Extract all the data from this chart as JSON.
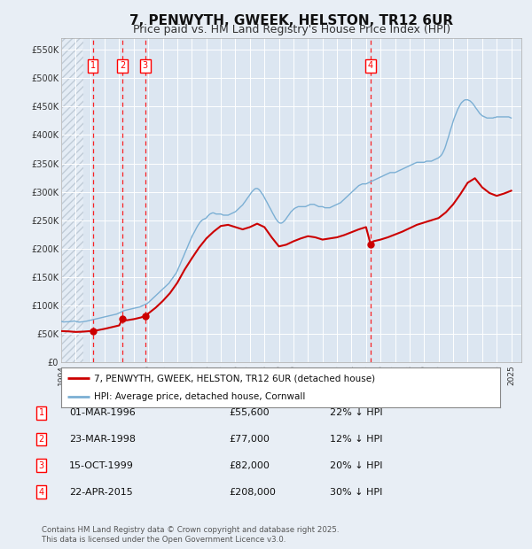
{
  "title": "7, PENWYTH, GWEEK, HELSTON, TR12 6UR",
  "subtitle": "Price paid vs. HM Land Registry's House Price Index (HPI)",
  "title_fontsize": 11,
  "subtitle_fontsize": 9,
  "background_color": "#e8eef5",
  "plot_bg_color": "#dce6f1",
  "grid_color": "#ffffff",
  "red_line_color": "#cc0000",
  "blue_line_color": "#7bafd4",
  "legend_label_red": "7, PENWYTH, GWEEK, HELSTON, TR12 6UR (detached house)",
  "legend_label_blue": "HPI: Average price, detached house, Cornwall",
  "footer": "Contains HM Land Registry data © Crown copyright and database right 2025.\nThis data is licensed under the Open Government Licence v3.0.",
  "transactions": [
    {
      "num": 1,
      "date": "01-MAR-1996",
      "price": 55600,
      "pct": "22%",
      "year_x": 1996.17
    },
    {
      "num": 2,
      "date": "23-MAR-1998",
      "price": 77000,
      "pct": "12%",
      "year_x": 1998.22
    },
    {
      "num": 3,
      "date": "15-OCT-1999",
      "price": 82000,
      "pct": "20%",
      "year_x": 1999.79
    },
    {
      "num": 4,
      "date": "22-APR-2015",
      "price": 208000,
      "pct": "30%",
      "year_x": 2015.31
    }
  ],
  "ylim": [
    0,
    570000
  ],
  "xlim_start": 1994.0,
  "xlim_end": 2025.7,
  "yticks": [
    0,
    50000,
    100000,
    150000,
    200000,
    250000,
    300000,
    350000,
    400000,
    450000,
    500000,
    550000
  ],
  "ytick_labels": [
    "£0",
    "£50K",
    "£100K",
    "£150K",
    "£200K",
    "£250K",
    "£300K",
    "£350K",
    "£400K",
    "£450K",
    "£500K",
    "£550K"
  ],
  "xticks": [
    1994,
    1995,
    1996,
    1997,
    1998,
    1999,
    2000,
    2001,
    2002,
    2003,
    2004,
    2005,
    2006,
    2007,
    2008,
    2009,
    2010,
    2011,
    2012,
    2013,
    2014,
    2015,
    2016,
    2017,
    2018,
    2019,
    2020,
    2021,
    2022,
    2023,
    2024,
    2025
  ],
  "hpi_data": [
    [
      1994.0,
      72000
    ],
    [
      1994.08,
      71500
    ],
    [
      1994.17,
      71000
    ],
    [
      1994.25,
      71200
    ],
    [
      1994.33,
      71400
    ],
    [
      1994.42,
      71300
    ],
    [
      1994.5,
      71500
    ],
    [
      1994.58,
      71800
    ],
    [
      1994.67,
      72000
    ],
    [
      1994.75,
      72200
    ],
    [
      1994.83,
      72500
    ],
    [
      1994.92,
      72800
    ],
    [
      1995.0,
      72000
    ],
    [
      1995.08,
      71500
    ],
    [
      1995.17,
      71000
    ],
    [
      1995.25,
      70800
    ],
    [
      1995.33,
      71000
    ],
    [
      1995.42,
      71200
    ],
    [
      1995.5,
      71500
    ],
    [
      1995.58,
      71800
    ],
    [
      1995.67,
      72000
    ],
    [
      1995.75,
      72500
    ],
    [
      1995.83,
      73000
    ],
    [
      1995.92,
      73500
    ],
    [
      1996.0,
      74000
    ],
    [
      1996.08,
      74500
    ],
    [
      1996.17,
      75000
    ],
    [
      1996.25,
      75500
    ],
    [
      1996.33,
      76000
    ],
    [
      1996.42,
      76500
    ],
    [
      1996.5,
      77000
    ],
    [
      1996.58,
      77500
    ],
    [
      1996.67,
      78000
    ],
    [
      1996.75,
      78500
    ],
    [
      1996.83,
      79000
    ],
    [
      1996.92,
      79500
    ],
    [
      1997.0,
      80000
    ],
    [
      1997.08,
      80500
    ],
    [
      1997.17,
      81000
    ],
    [
      1997.25,
      81500
    ],
    [
      1997.33,
      82000
    ],
    [
      1997.42,
      82500
    ],
    [
      1997.5,
      83000
    ],
    [
      1997.58,
      83500
    ],
    [
      1997.67,
      84000
    ],
    [
      1997.75,
      84500
    ],
    [
      1997.83,
      85000
    ],
    [
      1997.92,
      86000
    ],
    [
      1998.0,
      87000
    ],
    [
      1998.08,
      88000
    ],
    [
      1998.17,
      89000
    ],
    [
      1998.25,
      90000
    ],
    [
      1998.33,
      91000
    ],
    [
      1998.42,
      91500
    ],
    [
      1998.5,
      92000
    ],
    [
      1998.58,
      92500
    ],
    [
      1998.67,
      93000
    ],
    [
      1998.75,
      93500
    ],
    [
      1998.83,
      94000
    ],
    [
      1998.92,
      94500
    ],
    [
      1999.0,
      95000
    ],
    [
      1999.08,
      95500
    ],
    [
      1999.17,
      96000
    ],
    [
      1999.25,
      96500
    ],
    [
      1999.33,
      97000
    ],
    [
      1999.42,
      97500
    ],
    [
      1999.5,
      98500
    ],
    [
      1999.58,
      99500
    ],
    [
      1999.67,
      100500
    ],
    [
      1999.75,
      101500
    ],
    [
      1999.83,
      102500
    ],
    [
      1999.92,
      103500
    ],
    [
      2000.0,
      105000
    ],
    [
      2000.08,
      107000
    ],
    [
      2000.17,
      109000
    ],
    [
      2000.25,
      111000
    ],
    [
      2000.33,
      113000
    ],
    [
      2000.42,
      115000
    ],
    [
      2000.5,
      117000
    ],
    [
      2000.58,
      119000
    ],
    [
      2000.67,
      121000
    ],
    [
      2000.75,
      123000
    ],
    [
      2000.83,
      125000
    ],
    [
      2000.92,
      127000
    ],
    [
      2001.0,
      129000
    ],
    [
      2001.08,
      131000
    ],
    [
      2001.17,
      133000
    ],
    [
      2001.25,
      135000
    ],
    [
      2001.33,
      137000
    ],
    [
      2001.42,
      139000
    ],
    [
      2001.5,
      142000
    ],
    [
      2001.58,
      145000
    ],
    [
      2001.67,
      148000
    ],
    [
      2001.75,
      151000
    ],
    [
      2001.83,
      154000
    ],
    [
      2001.92,
      157000
    ],
    [
      2002.0,
      161000
    ],
    [
      2002.08,
      166000
    ],
    [
      2002.17,
      171000
    ],
    [
      2002.25,
      176000
    ],
    [
      2002.33,
      181000
    ],
    [
      2002.42,
      186000
    ],
    [
      2002.5,
      191000
    ],
    [
      2002.58,
      196000
    ],
    [
      2002.67,
      201000
    ],
    [
      2002.75,
      206000
    ],
    [
      2002.83,
      211000
    ],
    [
      2002.92,
      216000
    ],
    [
      2003.0,
      221000
    ],
    [
      2003.08,
      225000
    ],
    [
      2003.17,
      229000
    ],
    [
      2003.25,
      233000
    ],
    [
      2003.33,
      237000
    ],
    [
      2003.42,
      241000
    ],
    [
      2003.5,
      244000
    ],
    [
      2003.58,
      247000
    ],
    [
      2003.67,
      249000
    ],
    [
      2003.75,
      251000
    ],
    [
      2003.83,
      252000
    ],
    [
      2003.92,
      253000
    ],
    [
      2004.0,
      254000
    ],
    [
      2004.08,
      257000
    ],
    [
      2004.17,
      259000
    ],
    [
      2004.25,
      261000
    ],
    [
      2004.33,
      262000
    ],
    [
      2004.42,
      263000
    ],
    [
      2004.5,
      263000
    ],
    [
      2004.58,
      262000
    ],
    [
      2004.67,
      261000
    ],
    [
      2004.75,
      261000
    ],
    [
      2004.83,
      261000
    ],
    [
      2004.92,
      261000
    ],
    [
      2005.0,
      261000
    ],
    [
      2005.08,
      260000
    ],
    [
      2005.17,
      259000
    ],
    [
      2005.25,
      259000
    ],
    [
      2005.33,
      259000
    ],
    [
      2005.42,
      259000
    ],
    [
      2005.5,
      259000
    ],
    [
      2005.58,
      260000
    ],
    [
      2005.67,
      261000
    ],
    [
      2005.75,
      262000
    ],
    [
      2005.83,
      263000
    ],
    [
      2005.92,
      264000
    ],
    [
      2006.0,
      265000
    ],
    [
      2006.08,
      267000
    ],
    [
      2006.17,
      269000
    ],
    [
      2006.25,
      271000
    ],
    [
      2006.33,
      273000
    ],
    [
      2006.42,
      275000
    ],
    [
      2006.5,
      277000
    ],
    [
      2006.58,
      280000
    ],
    [
      2006.67,
      283000
    ],
    [
      2006.75,
      286000
    ],
    [
      2006.83,
      289000
    ],
    [
      2006.92,
      292000
    ],
    [
      2007.0,
      295000
    ],
    [
      2007.08,
      298000
    ],
    [
      2007.17,
      301000
    ],
    [
      2007.25,
      303000
    ],
    [
      2007.33,
      305000
    ],
    [
      2007.42,
      306000
    ],
    [
      2007.5,
      306000
    ],
    [
      2007.58,
      305000
    ],
    [
      2007.67,
      303000
    ],
    [
      2007.75,
      300000
    ],
    [
      2007.83,
      297000
    ],
    [
      2007.92,
      294000
    ],
    [
      2008.0,
      290000
    ],
    [
      2008.08,
      286000
    ],
    [
      2008.17,
      282000
    ],
    [
      2008.25,
      278000
    ],
    [
      2008.33,
      274000
    ],
    [
      2008.42,
      270000
    ],
    [
      2008.5,
      266000
    ],
    [
      2008.58,
      262000
    ],
    [
      2008.67,
      258000
    ],
    [
      2008.75,
      254000
    ],
    [
      2008.83,
      251000
    ],
    [
      2008.92,
      248000
    ],
    [
      2009.0,
      246000
    ],
    [
      2009.08,
      245000
    ],
    [
      2009.17,
      245000
    ],
    [
      2009.25,
      246000
    ],
    [
      2009.33,
      248000
    ],
    [
      2009.42,
      250000
    ],
    [
      2009.5,
      253000
    ],
    [
      2009.58,
      256000
    ],
    [
      2009.67,
      259000
    ],
    [
      2009.75,
      262000
    ],
    [
      2009.83,
      265000
    ],
    [
      2009.92,
      267000
    ],
    [
      2010.0,
      269000
    ],
    [
      2010.08,
      271000
    ],
    [
      2010.17,
      272000
    ],
    [
      2010.25,
      273000
    ],
    [
      2010.33,
      274000
    ],
    [
      2010.42,
      274000
    ],
    [
      2010.5,
      274000
    ],
    [
      2010.58,
      274000
    ],
    [
      2010.67,
      274000
    ],
    [
      2010.75,
      274000
    ],
    [
      2010.83,
      274000
    ],
    [
      2010.92,
      275000
    ],
    [
      2011.0,
      276000
    ],
    [
      2011.08,
      277000
    ],
    [
      2011.17,
      278000
    ],
    [
      2011.25,
      278000
    ],
    [
      2011.33,
      278000
    ],
    [
      2011.42,
      278000
    ],
    [
      2011.5,
      277000
    ],
    [
      2011.58,
      276000
    ],
    [
      2011.67,
      275000
    ],
    [
      2011.75,
      274000
    ],
    [
      2011.83,
      274000
    ],
    [
      2011.92,
      274000
    ],
    [
      2012.0,
      274000
    ],
    [
      2012.08,
      273000
    ],
    [
      2012.17,
      272000
    ],
    [
      2012.25,
      272000
    ],
    [
      2012.33,
      272000
    ],
    [
      2012.42,
      272000
    ],
    [
      2012.5,
      272000
    ],
    [
      2012.58,
      273000
    ],
    [
      2012.67,
      274000
    ],
    [
      2012.75,
      275000
    ],
    [
      2012.83,
      276000
    ],
    [
      2012.92,
      277000
    ],
    [
      2013.0,
      278000
    ],
    [
      2013.08,
      279000
    ],
    [
      2013.17,
      280000
    ],
    [
      2013.25,
      281000
    ],
    [
      2013.33,
      283000
    ],
    [
      2013.42,
      285000
    ],
    [
      2013.5,
      287000
    ],
    [
      2013.58,
      289000
    ],
    [
      2013.67,
      291000
    ],
    [
      2013.75,
      293000
    ],
    [
      2013.83,
      295000
    ],
    [
      2013.92,
      297000
    ],
    [
      2014.0,
      299000
    ],
    [
      2014.08,
      301000
    ],
    [
      2014.17,
      303000
    ],
    [
      2014.25,
      305000
    ],
    [
      2014.33,
      307000
    ],
    [
      2014.42,
      309000
    ],
    [
      2014.5,
      311000
    ],
    [
      2014.58,
      312000
    ],
    [
      2014.67,
      313000
    ],
    [
      2014.75,
      314000
    ],
    [
      2014.83,
      314000
    ],
    [
      2014.92,
      314000
    ],
    [
      2015.0,
      314000
    ],
    [
      2015.08,
      315000
    ],
    [
      2015.17,
      316000
    ],
    [
      2015.25,
      317000
    ],
    [
      2015.33,
      318000
    ],
    [
      2015.42,
      319000
    ],
    [
      2015.5,
      320000
    ],
    [
      2015.58,
      321000
    ],
    [
      2015.67,
      322000
    ],
    [
      2015.75,
      323000
    ],
    [
      2015.83,
      324000
    ],
    [
      2015.92,
      325000
    ],
    [
      2016.0,
      326000
    ],
    [
      2016.08,
      327000
    ],
    [
      2016.17,
      328000
    ],
    [
      2016.25,
      329000
    ],
    [
      2016.33,
      330000
    ],
    [
      2016.42,
      331000
    ],
    [
      2016.5,
      332000
    ],
    [
      2016.58,
      333000
    ],
    [
      2016.67,
      334000
    ],
    [
      2016.75,
      334000
    ],
    [
      2016.83,
      334000
    ],
    [
      2016.92,
      334000
    ],
    [
      2017.0,
      334000
    ],
    [
      2017.08,
      335000
    ],
    [
      2017.17,
      336000
    ],
    [
      2017.25,
      337000
    ],
    [
      2017.33,
      338000
    ],
    [
      2017.42,
      339000
    ],
    [
      2017.5,
      340000
    ],
    [
      2017.58,
      341000
    ],
    [
      2017.67,
      342000
    ],
    [
      2017.75,
      343000
    ],
    [
      2017.83,
      344000
    ],
    [
      2017.92,
      345000
    ],
    [
      2018.0,
      346000
    ],
    [
      2018.08,
      347000
    ],
    [
      2018.17,
      348000
    ],
    [
      2018.25,
      349000
    ],
    [
      2018.33,
      350000
    ],
    [
      2018.42,
      351000
    ],
    [
      2018.5,
      352000
    ],
    [
      2018.58,
      352000
    ],
    [
      2018.67,
      352000
    ],
    [
      2018.75,
      352000
    ],
    [
      2018.83,
      352000
    ],
    [
      2018.92,
      352000
    ],
    [
      2019.0,
      352000
    ],
    [
      2019.08,
      353000
    ],
    [
      2019.17,
      354000
    ],
    [
      2019.25,
      354000
    ],
    [
      2019.33,
      354000
    ],
    [
      2019.42,
      354000
    ],
    [
      2019.5,
      354000
    ],
    [
      2019.58,
      355000
    ],
    [
      2019.67,
      356000
    ],
    [
      2019.75,
      357000
    ],
    [
      2019.83,
      358000
    ],
    [
      2019.92,
      359000
    ],
    [
      2020.0,
      360000
    ],
    [
      2020.08,
      362000
    ],
    [
      2020.17,
      364000
    ],
    [
      2020.25,
      367000
    ],
    [
      2020.33,
      371000
    ],
    [
      2020.42,
      376000
    ],
    [
      2020.5,
      382000
    ],
    [
      2020.58,
      389000
    ],
    [
      2020.67,
      396000
    ],
    [
      2020.75,
      403000
    ],
    [
      2020.83,
      410000
    ],
    [
      2020.92,
      417000
    ],
    [
      2021.0,
      424000
    ],
    [
      2021.08,
      430000
    ],
    [
      2021.17,
      436000
    ],
    [
      2021.25,
      441000
    ],
    [
      2021.33,
      446000
    ],
    [
      2021.42,
      450000
    ],
    [
      2021.5,
      454000
    ],
    [
      2021.58,
      457000
    ],
    [
      2021.67,
      459000
    ],
    [
      2021.75,
      461000
    ],
    [
      2021.83,
      462000
    ],
    [
      2021.92,
      462000
    ],
    [
      2022.0,
      462000
    ],
    [
      2022.08,
      461000
    ],
    [
      2022.17,
      460000
    ],
    [
      2022.25,
      458000
    ],
    [
      2022.33,
      456000
    ],
    [
      2022.42,
      453000
    ],
    [
      2022.5,
      450000
    ],
    [
      2022.58,
      447000
    ],
    [
      2022.67,
      444000
    ],
    [
      2022.75,
      441000
    ],
    [
      2022.83,
      438000
    ],
    [
      2022.92,
      436000
    ],
    [
      2023.0,
      434000
    ],
    [
      2023.08,
      433000
    ],
    [
      2023.17,
      432000
    ],
    [
      2023.25,
      431000
    ],
    [
      2023.33,
      430000
    ],
    [
      2023.42,
      430000
    ],
    [
      2023.5,
      430000
    ],
    [
      2023.58,
      430000
    ],
    [
      2023.67,
      430000
    ],
    [
      2023.75,
      430000
    ],
    [
      2023.83,
      431000
    ],
    [
      2023.92,
      431000
    ],
    [
      2024.0,
      432000
    ],
    [
      2024.08,
      432000
    ],
    [
      2024.17,
      432000
    ],
    [
      2024.25,
      432000
    ],
    [
      2024.33,
      432000
    ],
    [
      2024.42,
      432000
    ],
    [
      2024.5,
      432000
    ],
    [
      2024.58,
      432000
    ],
    [
      2024.67,
      432000
    ],
    [
      2024.75,
      432000
    ],
    [
      2024.83,
      432000
    ],
    [
      2024.92,
      431000
    ],
    [
      2025.0,
      430000
    ]
  ],
  "price_data": [
    [
      1994.0,
      55000
    ],
    [
      1994.5,
      54500
    ],
    [
      1995.0,
      53500
    ],
    [
      1995.5,
      54000
    ],
    [
      1996.0,
      55000
    ],
    [
      1996.17,
      55600
    ],
    [
      1996.5,
      56500
    ],
    [
      1997.0,
      59000
    ],
    [
      1997.5,
      62000
    ],
    [
      1998.0,
      65000
    ],
    [
      1998.22,
      77000
    ],
    [
      1998.5,
      74000
    ],
    [
      1999.0,
      76000
    ],
    [
      1999.5,
      79000
    ],
    [
      1999.79,
      82000
    ],
    [
      2000.0,
      86000
    ],
    [
      2000.5,
      96000
    ],
    [
      2001.0,
      108000
    ],
    [
      2001.5,
      122000
    ],
    [
      2002.0,
      140000
    ],
    [
      2002.5,
      163000
    ],
    [
      2003.0,
      183000
    ],
    [
      2003.5,
      202000
    ],
    [
      2004.0,
      218000
    ],
    [
      2004.5,
      230000
    ],
    [
      2005.0,
      240000
    ],
    [
      2005.5,
      242000
    ],
    [
      2006.0,
      238000
    ],
    [
      2006.5,
      234000
    ],
    [
      2007.0,
      238000
    ],
    [
      2007.5,
      244000
    ],
    [
      2008.0,
      238000
    ],
    [
      2008.5,
      220000
    ],
    [
      2009.0,
      204000
    ],
    [
      2009.5,
      207000
    ],
    [
      2010.0,
      213000
    ],
    [
      2010.5,
      218000
    ],
    [
      2011.0,
      222000
    ],
    [
      2011.5,
      220000
    ],
    [
      2012.0,
      216000
    ],
    [
      2012.5,
      218000
    ],
    [
      2013.0,
      220000
    ],
    [
      2013.5,
      224000
    ],
    [
      2014.0,
      229000
    ],
    [
      2014.5,
      234000
    ],
    [
      2015.0,
      238000
    ],
    [
      2015.31,
      208000
    ],
    [
      2015.5,
      213000
    ],
    [
      2016.0,
      216000
    ],
    [
      2016.5,
      220000
    ],
    [
      2017.0,
      225000
    ],
    [
      2017.5,
      230000
    ],
    [
      2018.0,
      236000
    ],
    [
      2018.5,
      242000
    ],
    [
      2019.0,
      246000
    ],
    [
      2019.5,
      250000
    ],
    [
      2020.0,
      254000
    ],
    [
      2020.5,
      264000
    ],
    [
      2021.0,
      278000
    ],
    [
      2021.5,
      296000
    ],
    [
      2022.0,
      316000
    ],
    [
      2022.5,
      324000
    ],
    [
      2023.0,
      308000
    ],
    [
      2023.5,
      298000
    ],
    [
      2024.0,
      293000
    ],
    [
      2024.5,
      297000
    ],
    [
      2025.0,
      302000
    ]
  ]
}
